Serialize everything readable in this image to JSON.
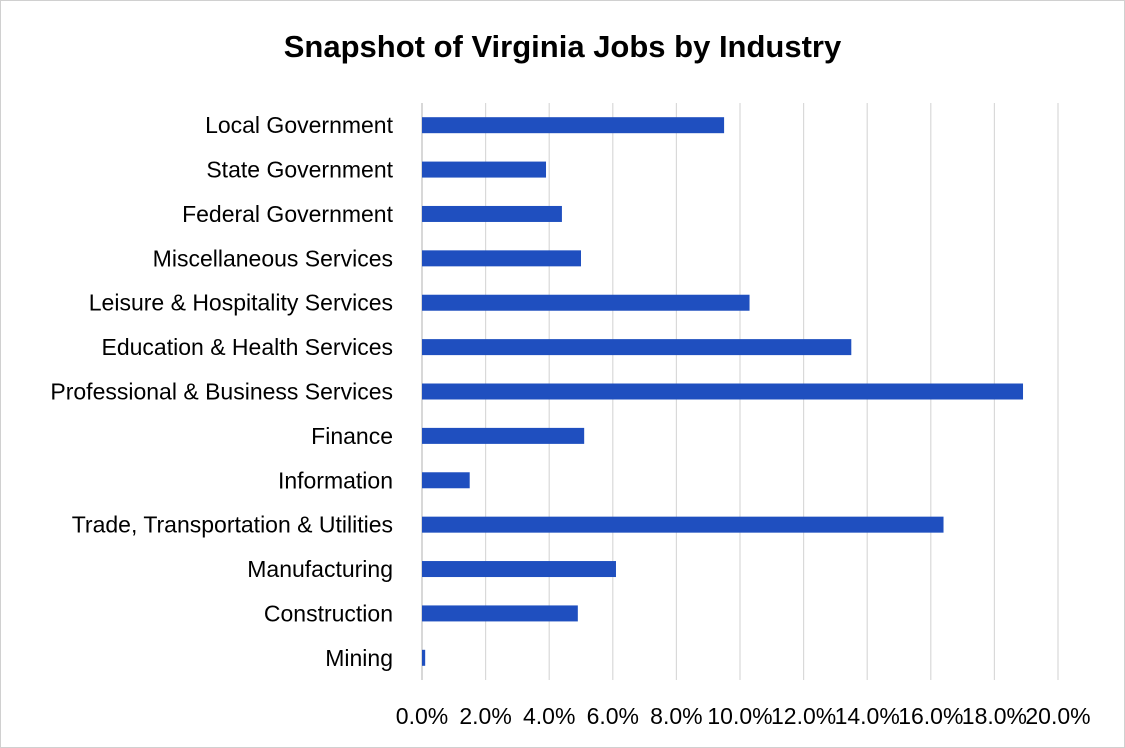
{
  "colors": {
    "bar": "#1f4fbf",
    "grid": "#d9d9d9",
    "axis": "#bfbfbf"
  },
  "chart_data": {
    "type": "bar",
    "orientation": "horizontal",
    "title": "Snapshot of Virginia Jobs by Industry",
    "xlabel": "",
    "ylabel": "",
    "xlim": [
      0,
      20
    ],
    "grid": true,
    "legend": "none",
    "x_tick_labels": [
      "0.0%",
      "2.0%",
      "4.0%",
      "6.0%",
      "8.0%",
      "10.0%",
      "12.0%",
      "14.0%",
      "16.0%",
      "18.0%",
      "20.0%"
    ],
    "categories": [
      "Local Government",
      "State Government",
      "Federal Government",
      "Miscellaneous Services",
      "Leisure & Hospitality Services",
      "Education & Health Services",
      "Professional & Business Services",
      "Finance",
      "Information",
      "Trade, Transportation & Utilities",
      "Manufacturing",
      "Construction",
      "Mining"
    ],
    "values": [
      9.5,
      3.9,
      4.4,
      5.0,
      10.3,
      13.5,
      18.9,
      5.1,
      1.5,
      16.4,
      6.1,
      4.9,
      0.1
    ]
  }
}
